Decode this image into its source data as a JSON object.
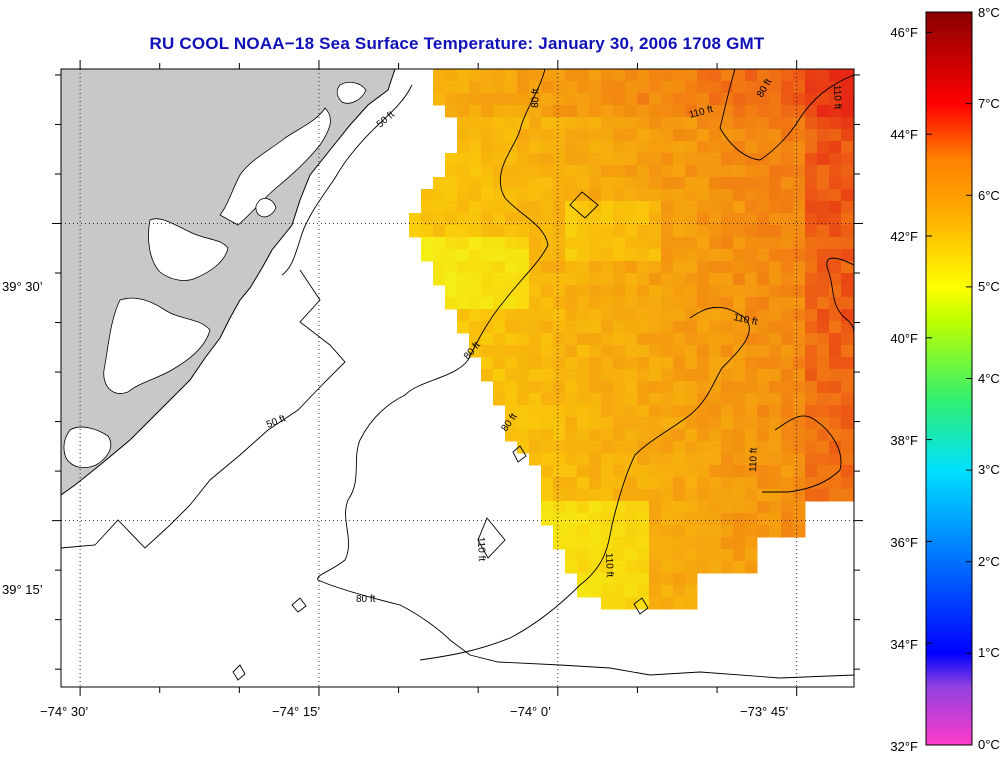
{
  "title": "RU COOL  NOAA−18  Sea Surface Temperature:  January 30, 2006 1708 GMT",
  "colors": {
    "land": "#c8c8c8",
    "title": "#1010b8",
    "contour": "#000000",
    "graticule": "#000000"
  },
  "map": {
    "lon_range": [
      -74.52,
      -73.69
    ],
    "lat_range": [
      39.11,
      39.63
    ],
    "lon_ticks": [
      {
        "value": -74.5,
        "label": "−74° 30’"
      },
      {
        "value": -74.25,
        "label": "−74° 15’"
      },
      {
        "value": -74.0,
        "label": "−74° 0’"
      },
      {
        "value": -73.75,
        "label": "−73° 45’"
      }
    ],
    "lat_ticks": [
      {
        "value": 39.5,
        "label": "39° 30’"
      },
      {
        "value": 39.25,
        "label": "39° 15’"
      }
    ],
    "grid": "dotted",
    "contour_labels": [
      {
        "text": "50 ft"
      },
      {
        "text": "50 ft"
      },
      {
        "text": "80 ft"
      },
      {
        "text": "80 ft"
      },
      {
        "text": "80 ft"
      },
      {
        "text": "80 ft"
      },
      {
        "text": "80 ft"
      },
      {
        "text": "110 ft"
      },
      {
        "text": "110 ft"
      },
      {
        "text": "110 ft"
      },
      {
        "text": "110 ft"
      },
      {
        "text": "110 ft"
      },
      {
        "text": "110 ft"
      }
    ]
  },
  "colorbar": {
    "range_c": [
      0,
      8
    ],
    "fahrenheit_labels": [
      "46°F",
      "44°F",
      "42°F",
      "40°F",
      "38°F",
      "36°F",
      "34°F",
      "32°F"
    ],
    "celsius_labels": [
      "8°C",
      "7°C",
      "6°C",
      "5°C",
      "4°C",
      "3°C",
      "2°C",
      "1°C",
      "0°C"
    ]
  }
}
